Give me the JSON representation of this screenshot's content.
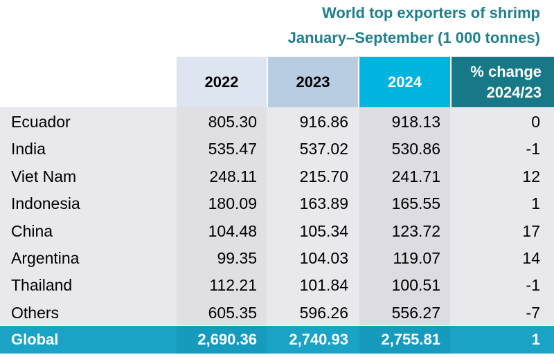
{
  "title": {
    "line1": "World top exporters of shrimp",
    "line2": "January–September (1 000 tonnes)"
  },
  "columns": {
    "y2022": "2022",
    "y2023": "2023",
    "y2024": "2024",
    "change_line1": "% change",
    "change_line2": "2024/23"
  },
  "rows": [
    {
      "country": "Ecuador",
      "v2022": "805.30",
      "v2023": "916.86",
      "v2024": "918.13",
      "change": "0"
    },
    {
      "country": "India",
      "v2022": "535.47",
      "v2023": "537.02",
      "v2024": "530.86",
      "change": "-1"
    },
    {
      "country": "Viet Nam",
      "v2022": "248.11",
      "v2023": "215.70",
      "v2024": "241.71",
      "change": "12"
    },
    {
      "country": "Indonesia",
      "v2022": "180.09",
      "v2023": "163.89",
      "v2024": "165.55",
      "change": "1"
    },
    {
      "country": "China",
      "v2022": "104.48",
      "v2023": "105.34",
      "v2024": "123.72",
      "change": "17"
    },
    {
      "country": "Argentina",
      "v2022": "99.35",
      "v2023": "104.03",
      "v2024": "119.07",
      "change": "14"
    },
    {
      "country": "Thailand",
      "v2022": "112.21",
      "v2023": "101.84",
      "v2024": "100.51",
      "change": "-1"
    },
    {
      "country": "Others",
      "v2022": "605.35",
      "v2023": "596.26",
      "v2024": "556.27",
      "change": "-7"
    }
  ],
  "total": {
    "label": "Global",
    "v2022": "2,690.36",
    "v2023": "2,740.93",
    "v2024": "2,755.81",
    "change": "1"
  },
  "colors": {
    "title": "#1f7f8c",
    "body_bg": "#e7e7ec",
    "col2022_header": "#dde6f0",
    "col2023_header": "#b8cce0",
    "col2024_header": "#00b4e0",
    "change_header": "#177987",
    "footer": "#1aa3c4"
  }
}
